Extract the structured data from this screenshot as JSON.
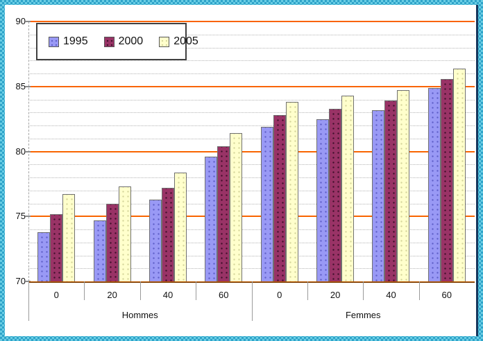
{
  "chart_data": {
    "type": "bar",
    "title": "",
    "ylabel": "",
    "xlabel": "",
    "ylim": [
      70,
      90
    ],
    "ytick_major": [
      70,
      75,
      80,
      85,
      90
    ],
    "ytick_minor_step": 1,
    "grid": {
      "major_color": "#f96400",
      "minor_color": "#b4b4b4",
      "minor_style": "dotted"
    },
    "legend_position": "top-left-inside",
    "categories": [
      {
        "label": "Hommes",
        "ages": [
          "0",
          "20",
          "40",
          "60"
        ]
      },
      {
        "label": "Femmes",
        "ages": [
          "0",
          "20",
          "40",
          "60"
        ]
      }
    ],
    "series": [
      {
        "name": "1995",
        "color": "#9999f5",
        "dot_color": "#5f5fc8",
        "values": [
          73.8,
          74.7,
          76.3,
          79.6,
          81.9,
          82.5,
          83.2,
          84.9
        ]
      },
      {
        "name": "2000",
        "color": "#993366",
        "dot_color": "#40102b",
        "values": [
          75.2,
          76.0,
          77.2,
          80.4,
          82.8,
          83.3,
          83.9,
          85.6
        ]
      },
      {
        "name": "2005",
        "color": "#ffffcc",
        "dot_color": "#d6d69b",
        "values": [
          76.7,
          77.3,
          78.4,
          81.4,
          83.8,
          84.3,
          84.7,
          86.4
        ]
      }
    ],
    "value_order_note": "values are [Hommes 0,20,40,60, Femmes 0,20,40,60]"
  },
  "frame": {
    "checker_dark": "#2fa3c9",
    "checker_light": "#69cde4",
    "right_line_color": "#17375d",
    "axis_line_color": "#4d2600"
  }
}
